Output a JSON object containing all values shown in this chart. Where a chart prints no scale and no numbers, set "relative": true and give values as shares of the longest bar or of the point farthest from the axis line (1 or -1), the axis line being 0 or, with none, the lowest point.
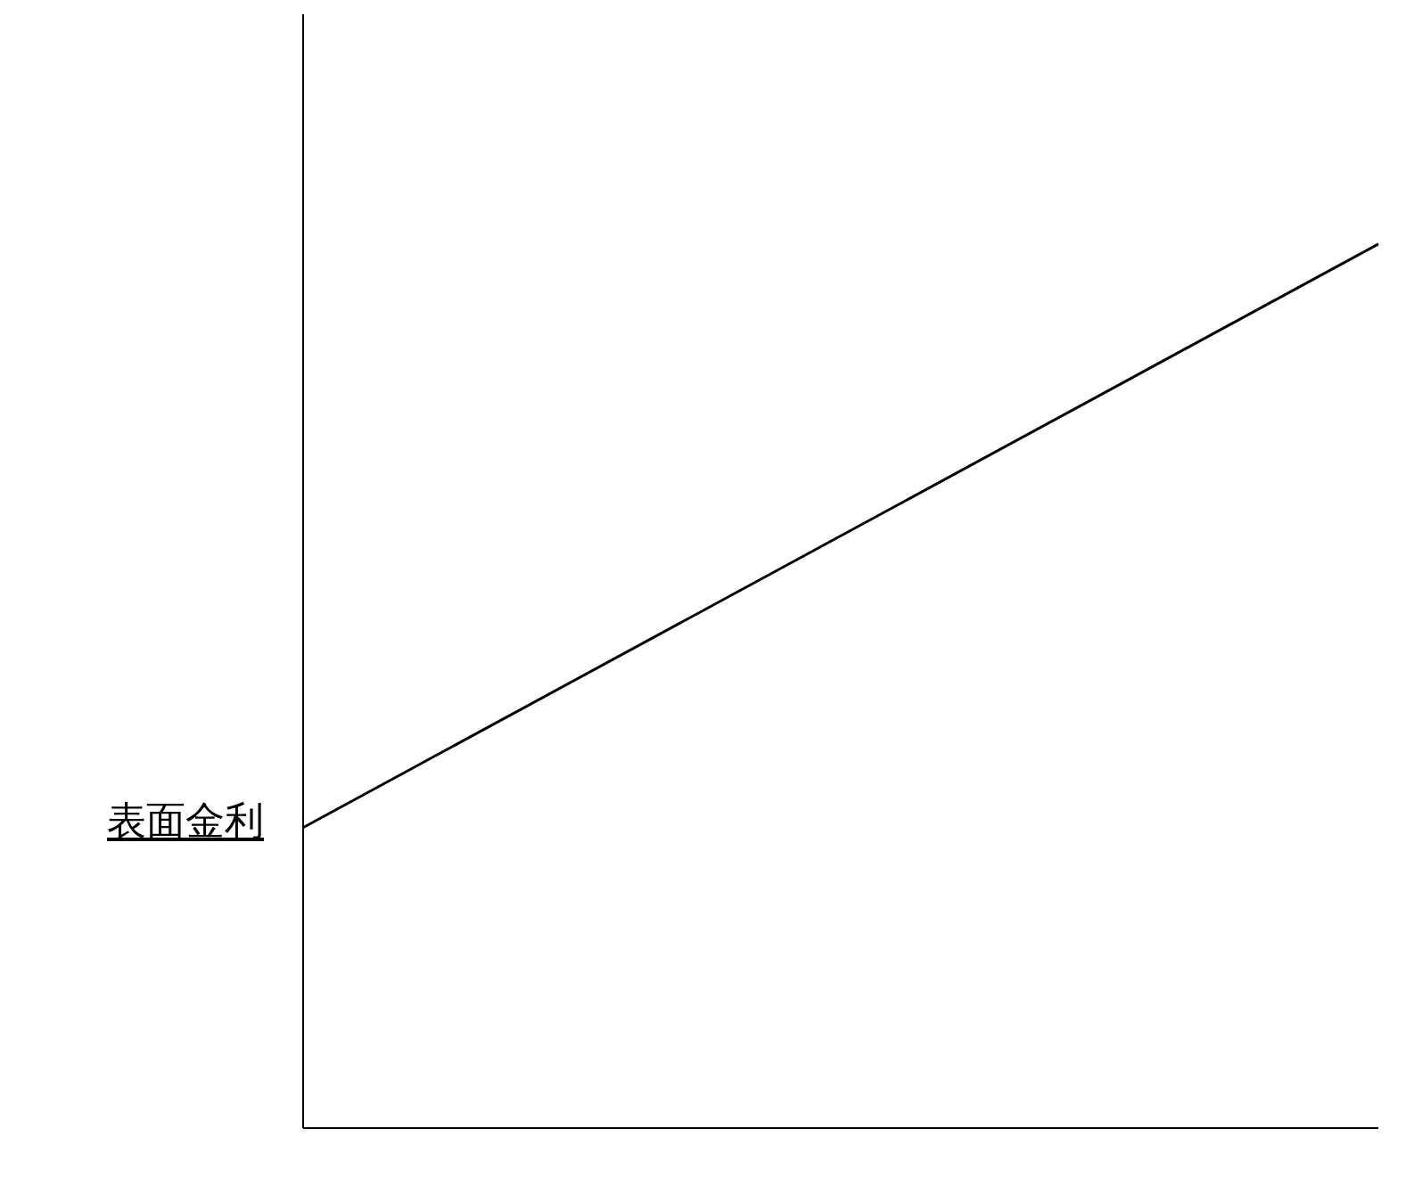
{
  "chart_data": {
    "type": "line",
    "relative": true,
    "categories": [
      null,
      null
    ],
    "series": [
      {
        "color": "#000000",
        "values": [
          0.34,
          1
        ]
      }
    ],
    "annotations": [
      "表面金利"
    ],
    "marker": "none",
    "line_style": "solid"
  }
}
